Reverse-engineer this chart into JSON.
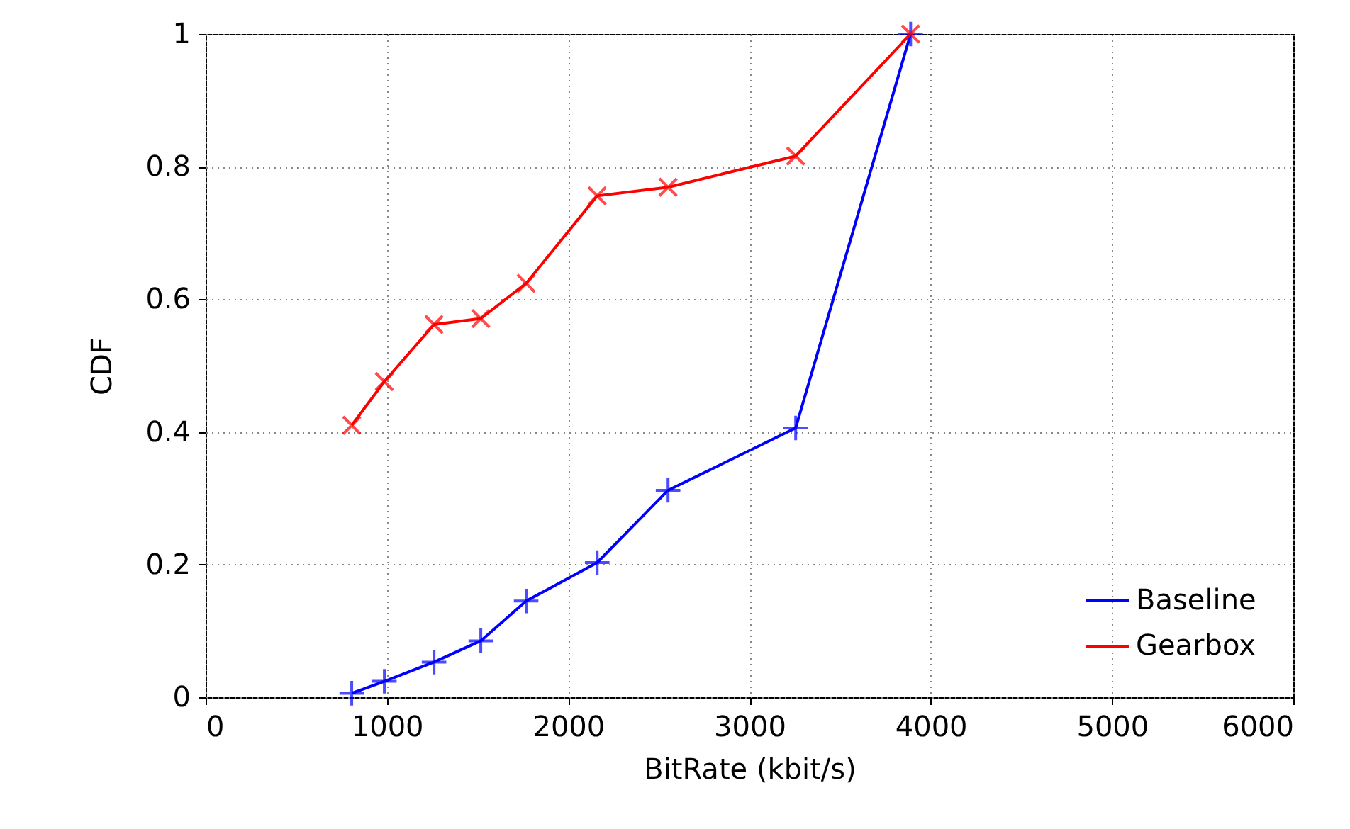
{
  "chart_data": {
    "type": "line",
    "xlabel": "BitRate (kbit/s)",
    "ylabel": "CDF",
    "xlim": [
      0,
      6000
    ],
    "xticks": [
      0,
      1000,
      2000,
      3000,
      4000,
      5000,
      6000
    ],
    "ylim": [
      0,
      1
    ],
    "yticks": [
      0,
      0.2,
      0.4,
      0.6,
      0.8,
      1
    ],
    "grid": true,
    "legend": "bottom right",
    "marker": "cross",
    "line_style": "solid",
    "series": [
      {
        "name": "Baseline",
        "color": "#0000ff",
        "x": [
          806,
          986,
          1260,
          1518,
          1768,
          2160,
          2551,
          3255,
          3889
        ],
        "values": [
          0.006,
          0.024,
          0.053,
          0.085,
          0.145,
          0.203,
          0.312,
          0.406,
          1
        ]
      },
      {
        "name": "Gearbox",
        "color": "#ff0000",
        "x": [
          806,
          986,
          1260,
          1518,
          1768,
          2160,
          2551,
          3255,
          3889
        ],
        "values": [
          0.41,
          0.476,
          0.562,
          0.571,
          0.624,
          0.756,
          0.769,
          0.816,
          1
        ]
      }
    ]
  }
}
